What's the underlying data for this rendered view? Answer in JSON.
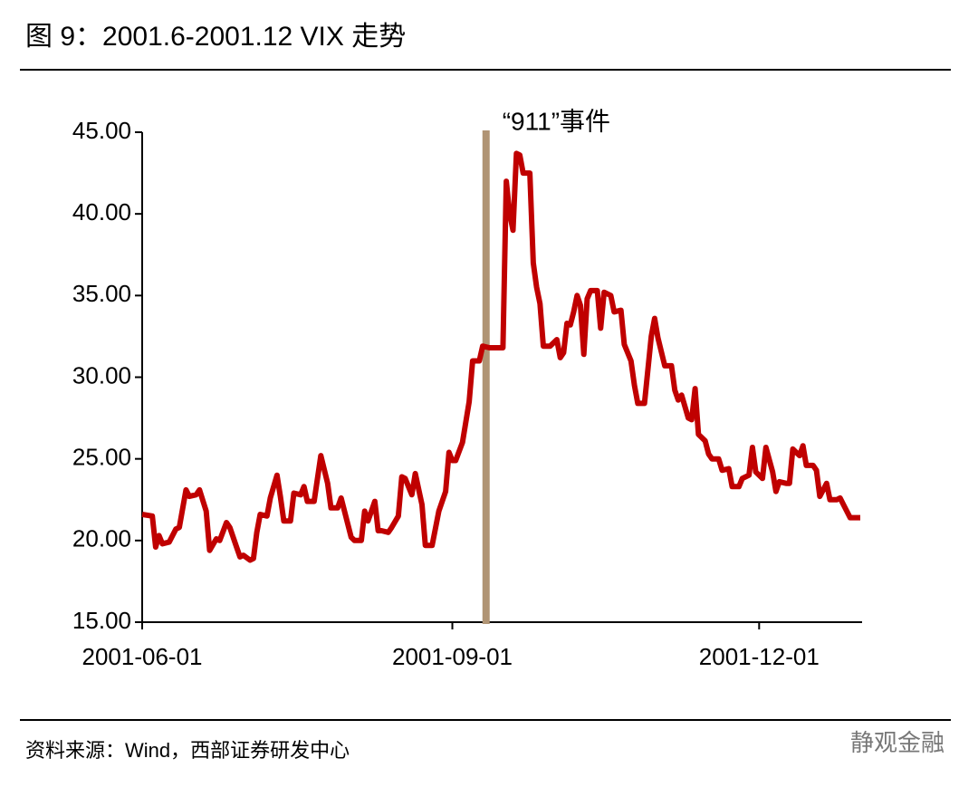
{
  "chart_data": {
    "type": "line",
    "title": "图 9：2001.6-2001.12 VIX 走势",
    "x": [
      "2001-06-01",
      "2001-06-04",
      "2001-06-05",
      "2001-06-06",
      "2001-06-07",
      "2001-06-09",
      "2001-06-11",
      "2001-06-12",
      "2001-06-14",
      "2001-06-15",
      "2001-06-17",
      "2001-06-18",
      "2001-06-20",
      "2001-06-21",
      "2001-06-23",
      "2001-06-24",
      "2001-06-26",
      "2001-06-27",
      "2001-06-29",
      "2001-06-30",
      "2001-07-01",
      "2001-07-03",
      "2001-07-04",
      "2001-07-05",
      "2001-07-06",
      "2001-07-08",
      "2001-07-09",
      "2001-07-11",
      "2001-07-12",
      "2001-07-13",
      "2001-07-15",
      "2001-07-16",
      "2001-07-18",
      "2001-07-19",
      "2001-07-20",
      "2001-07-22",
      "2001-07-24",
      "2001-07-26",
      "2001-07-27",
      "2001-07-29",
      "2001-07-30",
      "2001-08-01",
      "2001-08-02",
      "2001-08-03",
      "2001-08-05",
      "2001-08-06",
      "2001-08-07",
      "2001-08-09",
      "2001-08-10",
      "2001-08-11",
      "2001-08-13",
      "2001-08-14",
      "2001-08-16",
      "2001-08-17",
      "2001-08-18",
      "2001-08-20",
      "2001-08-21",
      "2001-08-23",
      "2001-08-24",
      "2001-08-26",
      "2001-08-28",
      "2001-08-30",
      "2001-08-31",
      "2001-09-01",
      "2001-09-02",
      "2001-09-04",
      "2001-09-06",
      "2001-09-07",
      "2001-09-09",
      "2001-09-10",
      "2001-09-12",
      "2001-09-14",
      "2001-09-16",
      "2001-09-17",
      "2001-09-18",
      "2001-09-19",
      "2001-09-20",
      "2001-09-21",
      "2001-09-22",
      "2001-09-24",
      "2001-09-25",
      "2001-09-26",
      "2001-09-27",
      "2001-09-28",
      "2001-09-30",
      "2001-10-02",
      "2001-10-03",
      "2001-10-04",
      "2001-10-05",
      "2001-10-06",
      "2001-10-07",
      "2001-10-08",
      "2001-10-09",
      "2001-10-10",
      "2001-10-11",
      "2001-10-12",
      "2001-10-14",
      "2001-10-15",
      "2001-10-16",
      "2001-10-18",
      "2001-10-19",
      "2001-10-21",
      "2001-10-22",
      "2001-10-24",
      "2001-10-25",
      "2001-10-26",
      "2001-10-28",
      "2001-10-30",
      "2001-10-31",
      "2001-11-01",
      "2001-11-03",
      "2001-11-05",
      "2001-11-06",
      "2001-11-07",
      "2001-11-08",
      "2001-11-10",
      "2001-11-11",
      "2001-11-12",
      "2001-11-13",
      "2001-11-15",
      "2001-11-16",
      "2001-11-17",
      "2001-11-19",
      "2001-11-20",
      "2001-11-22",
      "2001-11-23",
      "2001-11-25",
      "2001-11-26",
      "2001-11-28",
      "2001-11-29",
      "2001-11-30",
      "2001-12-02",
      "2001-12-03",
      "2001-12-05",
      "2001-12-06",
      "2001-12-07",
      "2001-12-09",
      "2001-12-10",
      "2001-12-11",
      "2001-12-13",
      "2001-12-14",
      "2001-12-15",
      "2001-12-17",
      "2001-12-18",
      "2001-12-19",
      "2001-12-21",
      "2001-12-22",
      "2001-12-24",
      "2001-12-25",
      "2001-12-26",
      "2001-12-28",
      "2001-12-30",
      "2001-12-31"
    ],
    "series": [
      {
        "color": "#c00000",
        "values": [
          21.6,
          21.5,
          19.6,
          20.3,
          19.8,
          19.9,
          20.7,
          20.8,
          23.1,
          22.7,
          22.8,
          23.1,
          21.8,
          19.4,
          20.1,
          20.0,
          21.1,
          20.8,
          19.6,
          19.0,
          19.1,
          18.8,
          18.9,
          20.5,
          21.6,
          21.5,
          22.6,
          24.0,
          22.7,
          21.2,
          21.2,
          22.9,
          22.8,
          23.3,
          22.4,
          22.4,
          25.2,
          23.5,
          22.0,
          22.0,
          22.6,
          21.0,
          20.2,
          20.0,
          20.0,
          21.8,
          21.2,
          22.4,
          20.6,
          20.6,
          20.5,
          20.8,
          21.5,
          23.9,
          23.8,
          22.8,
          24.1,
          22.2,
          19.7,
          19.7,
          21.8,
          23.0,
          25.4,
          24.9,
          24.9,
          26.0,
          28.5,
          31.0,
          31.0,
          31.9,
          31.8,
          31.8,
          31.8,
          42.0,
          40.0,
          39.0,
          43.7,
          43.6,
          42.5,
          42.5,
          37.0,
          35.5,
          34.5,
          31.9,
          31.9,
          32.3,
          31.2,
          31.5,
          33.3,
          33.2,
          34.0,
          35.0,
          34.4,
          31.4,
          34.8,
          35.3,
          35.3,
          33.0,
          35.2,
          35.0,
          34.0,
          34.1,
          32.0,
          31.0,
          29.5,
          28.4,
          28.4,
          32.5,
          33.6,
          32.4,
          30.7,
          30.7,
          29.2,
          28.6,
          28.9,
          27.5,
          27.4,
          29.3,
          26.5,
          26.1,
          25.3,
          25.0,
          25.0,
          24.3,
          24.4,
          23.3,
          23.3,
          23.8,
          24.0,
          25.7,
          24.2,
          23.8,
          25.7,
          24.2,
          23.0,
          23.6,
          23.5,
          23.5,
          25.6,
          25.2,
          25.8,
          24.6,
          24.6,
          24.3,
          22.7,
          23.5,
          22.5,
          22.5,
          22.6,
          22.2,
          21.4,
          21.4,
          21.4
        ]
      }
    ],
    "xlim": [
      "2001-06-01",
      "2001-12-31"
    ],
    "xticks": [
      "2001-06-01",
      "2001-09-01",
      "2001-12-01"
    ],
    "ylim": [
      15,
      45
    ],
    "yticks": [
      {
        "value": 15,
        "label": "15.00"
      },
      {
        "value": 20,
        "label": "20.00"
      },
      {
        "value": 25,
        "label": "25.00"
      },
      {
        "value": 30,
        "label": "30.00"
      },
      {
        "value": 35,
        "label": "35.00"
      },
      {
        "value": 40,
        "label": "40.00"
      },
      {
        "value": 45,
        "label": "45.00"
      }
    ],
    "annotations": [
      {
        "text": "“911”事件",
        "x": "2001-09-11",
        "color": "#b09474"
      }
    ]
  },
  "source": "资料来源：Wind，西部证券研发中心",
  "watermark": "静观金融"
}
